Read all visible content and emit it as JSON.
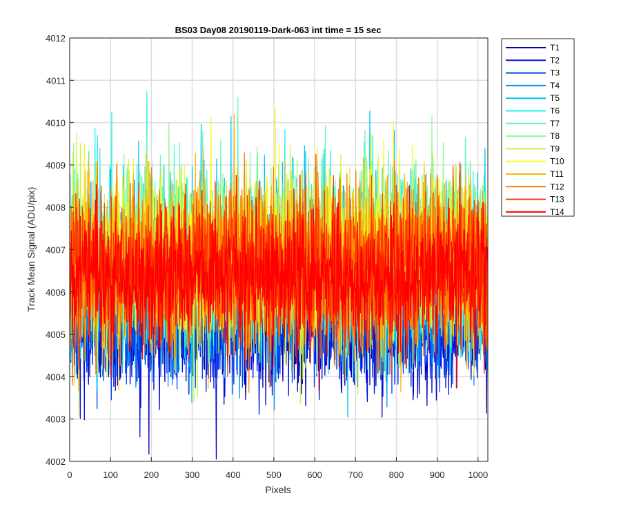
{
  "chart_data": {
    "type": "line",
    "title": "BS03 Day08 20190119-Dark-063 int time = 15 sec",
    "xlabel": "Pixels",
    "ylabel": "Track Mean Signal (ADU/pix)",
    "xlim": [
      0,
      1024
    ],
    "ylim": [
      4002,
      4012
    ],
    "x_ticks": [
      0,
      100,
      200,
      300,
      400,
      500,
      600,
      700,
      800,
      900,
      1000
    ],
    "y_ticks": [
      4002,
      4003,
      4004,
      4005,
      4006,
      4007,
      4008,
      4009,
      4010,
      4011,
      4012
    ],
    "grid": true,
    "legend_position": "outside-top-right",
    "x_samples": 1024,
    "series": [
      {
        "name": "T1",
        "color": "#0000b8",
        "mean": 4005.2,
        "spread": 0.75
      },
      {
        "name": "T2",
        "color": "#0012dd",
        "mean": 4005.3,
        "spread": 0.75
      },
      {
        "name": "T3",
        "color": "#0048ef",
        "mean": 4005.5,
        "spread": 0.8
      },
      {
        "name": "T4",
        "color": "#0090f5",
        "mean": 4006.3,
        "spread": 1.0
      },
      {
        "name": "T5",
        "color": "#00c4f4",
        "mean": 4006.6,
        "spread": 1.05
      },
      {
        "name": "T6",
        "color": "#20f0f0",
        "mean": 4006.7,
        "spread": 1.0
      },
      {
        "name": "T7",
        "color": "#60f5c0",
        "mean": 4006.8,
        "spread": 1.0
      },
      {
        "name": "T8",
        "color": "#90f890",
        "mean": 4006.8,
        "spread": 1.0
      },
      {
        "name": "T9",
        "color": "#c8f540",
        "mean": 4006.8,
        "spread": 1.0
      },
      {
        "name": "T10",
        "color": "#f8f820",
        "mean": 4006.8,
        "spread": 1.0
      },
      {
        "name": "T11",
        "color": "#f8b810",
        "mean": 4006.7,
        "spread": 1.0
      },
      {
        "name": "T12",
        "color": "#ff7a00",
        "mean": 4006.6,
        "spread": 0.95
      },
      {
        "name": "T13",
        "color": "#ff3a00",
        "mean": 4006.5,
        "spread": 0.9
      },
      {
        "name": "T14",
        "color": "#ff0000",
        "mean": 4006.3,
        "spread": 0.8
      }
    ]
  }
}
